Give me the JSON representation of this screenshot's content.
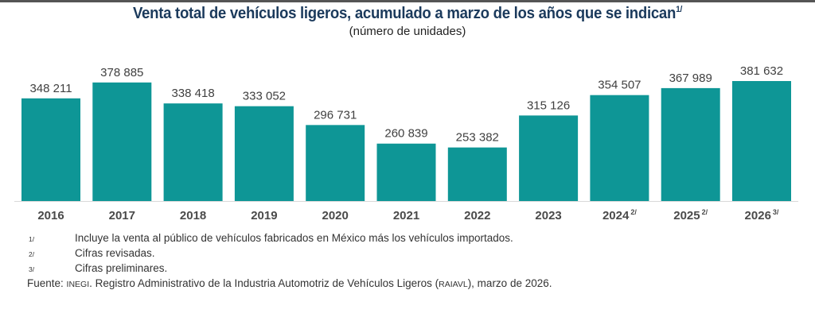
{
  "header": {
    "title": "Venta total de vehículos ligeros, acumulado a marzo de los años que se indican",
    "title_note": "1/",
    "subtitle": "(número de unidades)"
  },
  "chart_data": {
    "type": "bar",
    "title": "Venta total de vehículos ligeros, acumulado a marzo de los años que se indican",
    "subtitle": "(número de unidades)",
    "xlabel": "",
    "ylabel": "",
    "categories": [
      "2016",
      "2017",
      "2018",
      "2019",
      "2020",
      "2021",
      "2022",
      "2023",
      "2024",
      "2025",
      "2026"
    ],
    "category_notes": [
      "",
      "",
      "",
      "",
      "",
      "",
      "",
      "",
      "2/",
      "2/",
      "3/"
    ],
    "values": [
      348211,
      378885,
      338418,
      333052,
      296731,
      260839,
      253382,
      315126,
      354507,
      367989,
      381632
    ],
    "data_labels": [
      "348 211",
      "378 885",
      "338 418",
      "333 052",
      "296 731",
      "260 839",
      "253 382",
      "315 126",
      "354 507",
      "367 989",
      "381 632"
    ],
    "ylim": [
      0,
      381632
    ],
    "grid": false,
    "legend": "none",
    "bar_color": "#0e9696",
    "label_color": "#404040"
  },
  "footnotes": [
    {
      "mark": "1/",
      "text": "Incluye la venta al público de vehículos fabricados en México más los vehículos importados."
    },
    {
      "mark": "2/",
      "text": "Cifras revisadas."
    },
    {
      "mark": "3/",
      "text": "Cifras preliminares."
    }
  ],
  "source": {
    "label": "Fuente:",
    "org": "INEGI",
    "text_1": ". Registro Administrativo de la Industria Automotriz de Vehículos Ligeros (",
    "acronym": "RAIAVL",
    "text_2": "), marzo de 2026."
  }
}
